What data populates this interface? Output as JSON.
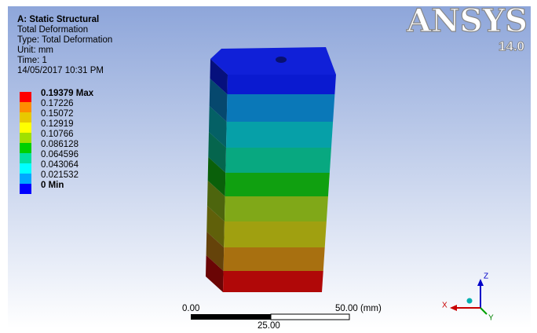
{
  "header": {
    "lines": [
      "A: Static Structural",
      "Total Deformation",
      "Type: Total Deformation",
      "Unit: mm",
      "Time: 1",
      "14/05/2017 10:31 PM"
    ]
  },
  "legend": {
    "items": [
      {
        "label": "0.19379 Max",
        "color": "#ff0000"
      },
      {
        "label": "0.17226",
        "color": "#ff8c00"
      },
      {
        "label": "0.15072",
        "color": "#e8c800"
      },
      {
        "label": "0.12919",
        "color": "#ffff00"
      },
      {
        "label": "0.10766",
        "color": "#a0e000"
      },
      {
        "label": "0.086128",
        "color": "#00d000"
      },
      {
        "label": "0.064596",
        "color": "#00e0a0"
      },
      {
        "label": "0.043064",
        "color": "#00ffff"
      },
      {
        "label": "0.021532",
        "color": "#00a8ff"
      },
      {
        "label": "0 Min",
        "color": "#0000ff"
      }
    ]
  },
  "logo": {
    "name": "ANSYS",
    "version": "14.0"
  },
  "scale_bar": {
    "start": "0.00",
    "end": "50.00 (mm)",
    "mid": "25.00"
  },
  "axes": {
    "z": "Z",
    "x": "X",
    "y": "Y"
  }
}
